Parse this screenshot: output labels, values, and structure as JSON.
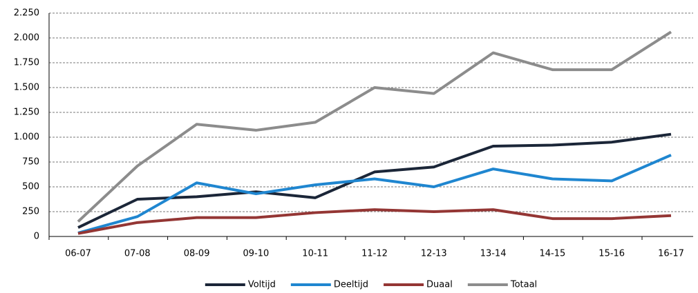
{
  "chart_data": {
    "type": "line",
    "categories": [
      "06-07",
      "07-08",
      "08-09",
      "09-10",
      "10-11",
      "11-12",
      "12-13",
      "13-14",
      "14-15",
      "15-16",
      "16-17"
    ],
    "series": [
      {
        "name": "Voltijd",
        "color": "#1b2638",
        "values": [
          90,
          375,
          400,
          450,
          390,
          650,
          700,
          910,
          920,
          950,
          1030
        ]
      },
      {
        "name": "Deeltijd",
        "color": "#1f86d0",
        "values": [
          35,
          200,
          540,
          430,
          520,
          580,
          500,
          680,
          580,
          560,
          820
        ]
      },
      {
        "name": "Duaal",
        "color": "#943634",
        "values": [
          30,
          140,
          190,
          190,
          240,
          270,
          250,
          270,
          180,
          180,
          210
        ]
      },
      {
        "name": "Totaal",
        "color": "#8c8c8c",
        "values": [
          150,
          710,
          1130,
          1070,
          1150,
          1500,
          1440,
          1850,
          1680,
          1680,
          2060
        ]
      }
    ],
    "ylim": [
      0,
      2250
    ],
    "yticks": [
      0,
      250,
      500,
      750,
      {
        "value": 1000,
        "label": "1.000"
      },
      {
        "value": 1250,
        "label": "1.250"
      },
      {
        "value": 1500,
        "label": "1.500"
      },
      {
        "value": 1750,
        "label": "1.750"
      },
      {
        "value": 2000,
        "label": "2.000"
      },
      {
        "value": 2250,
        "label": "2.250"
      }
    ],
    "grid": true,
    "legend": "bottom"
  }
}
